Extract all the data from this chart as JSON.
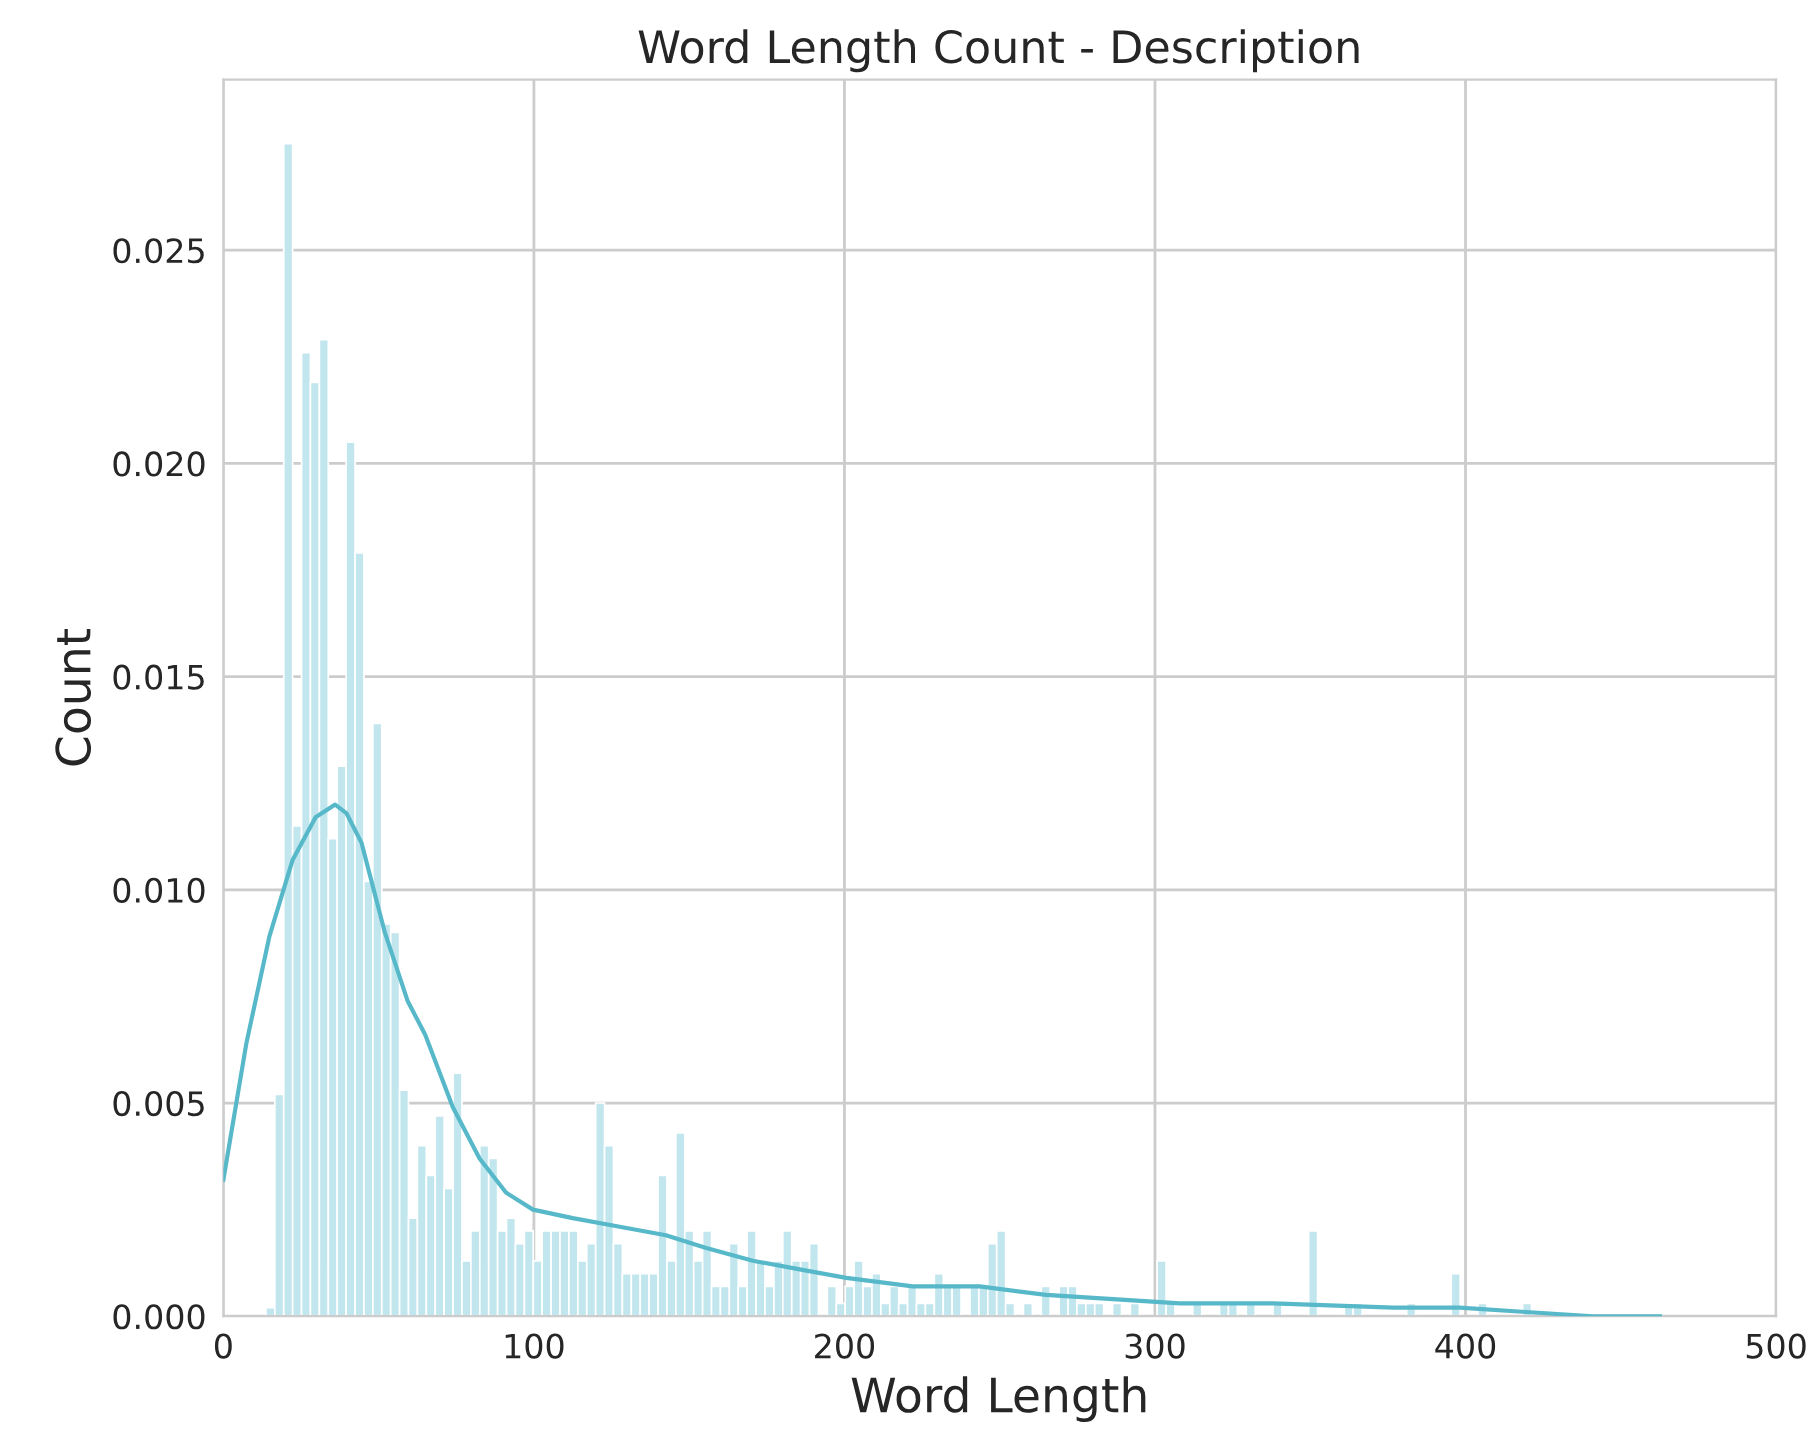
{
  "chart_data": {
    "type": "histogram",
    "title": "Word Length Count - Description",
    "xlabel": "Word Length",
    "ylabel": "Count",
    "color": "#c2e6ed",
    "bins": [
      13.7,
      16.57,
      19.44,
      22.31,
      25.18,
      28.05,
      30.92,
      33.79,
      36.66,
      39.53,
      42.4,
      45.27,
      48.14,
      51.01,
      53.88,
      56.75,
      59.62,
      62.49,
      65.36,
      68.23,
      71.1,
      73.97,
      76.84,
      79.71,
      82.58,
      85.45,
      88.32,
      91.19,
      94.06,
      96.93,
      99.8,
      102.67,
      105.54,
      108.41,
      111.28,
      114.15,
      117.02,
      119.89,
      122.76,
      125.63,
      128.5,
      131.37,
      134.24,
      137.11,
      139.98,
      142.85,
      145.72,
      148.59,
      151.46,
      154.33,
      157.2,
      160.07,
      162.94,
      165.81,
      168.68,
      171.55,
      174.42,
      177.29,
      180.16,
      183.03,
      185.9,
      188.77,
      191.64,
      194.51,
      197.38,
      200.25,
      203.12,
      205.99,
      208.86,
      211.73,
      214.6,
      217.47,
      220.34,
      223.21,
      226.08,
      228.95,
      231.82,
      234.69,
      237.56,
      240.43,
      243.3,
      246.17,
      249.04,
      251.91,
      254.78,
      257.65,
      260.52,
      263.39,
      266.26,
      269.13,
      272,
      274.87,
      277.74,
      280.61,
      283.48,
      286.35,
      289.22,
      292.09,
      294.96,
      297.83,
      300.7,
      303.57,
      306.44,
      309.31,
      312.18,
      315.05,
      317.92,
      320.79,
      323.66,
      326.53,
      329.4,
      332.27,
      335.14,
      338.01,
      340.88,
      343.75,
      346.62,
      349.49,
      352.36,
      355.23,
      358.1,
      360.97,
      363.84,
      366.71,
      369.58,
      372.45,
      375.32,
      378.19,
      381.06,
      383.93,
      386.8,
      389.67,
      392.54,
      395.41,
      398.28,
      401.15,
      404.02,
      406.89,
      409.76,
      412.63,
      415.5,
      418.37,
      421.24
    ],
    "values": [
      0.0002,
      0.0052,
      0.0275,
      0.0115,
      0.0226,
      0.0219,
      0.0229,
      0.0112,
      0.0129,
      0.0205,
      0.0179,
      0.0102,
      0.0139,
      0.0092,
      0.009,
      0.0053,
      0.0023,
      0.004,
      0.0033,
      0.0047,
      0.003,
      0.0057,
      0.0013,
      0.002,
      0.004,
      0.0037,
      0.002,
      0.0023,
      0.0017,
      0.002,
      0.0013,
      0.002,
      0.002,
      0.002,
      0.002,
      0.0013,
      0.0017,
      0.005,
      0.004,
      0.0017,
      0.001,
      0.001,
      0.001,
      0.001,
      0.0033,
      0.0013,
      0.0043,
      0.002,
      0.0013,
      0.002,
      0.0007,
      0.0007,
      0.0017,
      0.0007,
      0.002,
      0.0013,
      0.0007,
      0.0013,
      0.002,
      0.0013,
      0.0013,
      0.0017,
      0,
      0.0007,
      0.0003,
      0.0007,
      0.0013,
      0.0007,
      0.001,
      0.0003,
      0.0007,
      0.0003,
      0.0007,
      0.0003,
      0.0003,
      0.001,
      0.0007,
      0.0007,
      0,
      0.0007,
      0.0007,
      0.0017,
      0.002,
      0.0003,
      0,
      0.0003,
      0,
      0.0007,
      0,
      0.0007,
      0.0007,
      0.0003,
      0.0003,
      0.0003,
      0,
      0.0003,
      0,
      0.0003,
      0,
      0,
      0.0013,
      0.0003,
      0,
      0,
      0.0003,
      0,
      0,
      0.0003,
      0.0003,
      0,
      0.0003,
      0,
      0,
      0.0003,
      0,
      0,
      0,
      0.002,
      0,
      0,
      0,
      0.0003,
      0.0003,
      0,
      0,
      0,
      0,
      0,
      0.0003,
      0,
      0,
      0,
      0,
      0.001,
      0,
      0,
      0.0003,
      0,
      0,
      0,
      0,
      0.0003
    ],
    "series": [
      {
        "type": "line",
        "color": "#56b8c8",
        "x": [
          0,
          7.4,
          14.8,
          22.3,
          29.7,
          36,
          39.6,
          44.5,
          52,
          59.3,
          65,
          73.9,
          82.5,
          91,
          99.7,
          112.5,
          127.6,
          142.5,
          155.5,
          170.5,
          185.6,
          200.6,
          222,
          243.6,
          264.9,
          286.5,
          308,
          338,
          376.7,
          398,
          419.5,
          441,
          462.6
        ],
        "values": [
          0.0032,
          0.0064,
          0.0089,
          0.0107,
          0.0117,
          0.012,
          0.0118,
          0.0111,
          0.009,
          0.0074,
          0.0066,
          0.0049,
          0.0037,
          0.0029,
          0.0025,
          0.0023,
          0.0021,
          0.0019,
          0.0016,
          0.0013,
          0.0011,
          0.0009,
          0.0007,
          0.0007,
          0.0005,
          0.0004,
          0.0003,
          0.0003,
          0.0002,
          0.0002,
          0.0001,
          0,
          0
        ]
      }
    ],
    "xlim": [
      0,
      500
    ],
    "xticks": [
      0,
      100,
      200,
      300,
      400,
      500
    ],
    "ylim": [
      0,
      0.029
    ],
    "yticks": [
      {
        "value": 0,
        "label": "0.000"
      },
      {
        "value": 0.005,
        "label": "0.005"
      },
      {
        "value": 0.01,
        "label": "0.010"
      },
      {
        "value": 0.015,
        "label": "0.015"
      },
      {
        "value": 0.02,
        "label": "0.020"
      },
      {
        "value": 0.025,
        "label": "0.025"
      }
    ],
    "grid": true
  }
}
